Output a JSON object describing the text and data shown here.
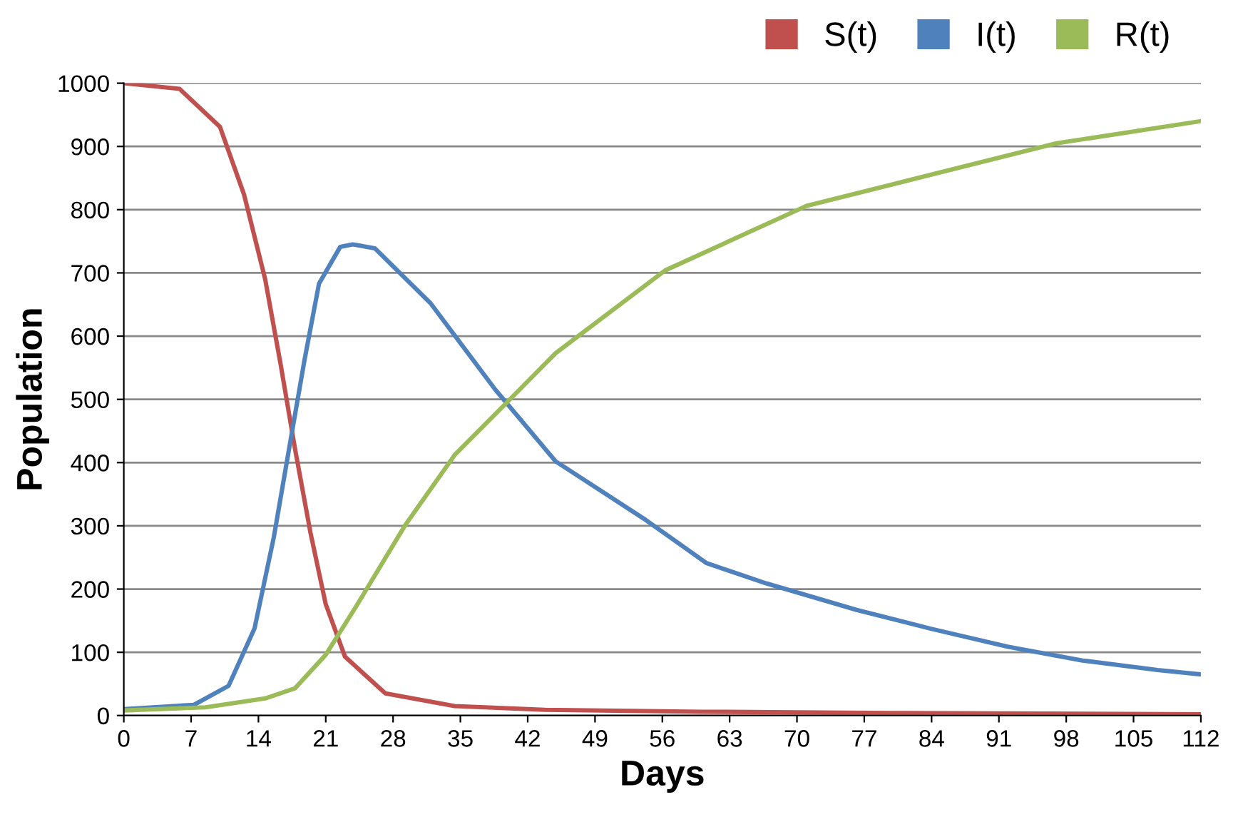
{
  "chart_data": {
    "type": "line",
    "xlabel": "Days",
    "ylabel": "Population",
    "xlim": [
      0,
      112
    ],
    "xticks": [
      0,
      7,
      14,
      21,
      28,
      35,
      42,
      49,
      56,
      63,
      70,
      77,
      84,
      91,
      98,
      105,
      112
    ],
    "ylim": [
      0,
      1000
    ],
    "yticks": [
      0,
      100,
      200,
      300,
      400,
      500,
      600,
      700,
      800,
      900,
      1000
    ],
    "grid": "y",
    "legend": "top right",
    "marker": "none",
    "line_style": "solid",
    "series": [
      {
        "name": "S(t)",
        "color": "#c0504d",
        "x": [
          0,
          5.8,
          10,
          12.5,
          14.7,
          16.3,
          17.8,
          19.4,
          21,
          23,
          27.2,
          34.4,
          43.8,
          60,
          80,
          112
        ],
        "values": [
          1000,
          991,
          931,
          824,
          690,
          556,
          422,
          290,
          176,
          93,
          35,
          15,
          9,
          6,
          4,
          2
        ]
      },
      {
        "name": "I(t)",
        "color": "#4f81bd",
        "x": [
          0,
          7.3,
          10.9,
          13.6,
          15.6,
          17.2,
          18.8,
          20.3,
          22.5,
          23.8,
          26.1,
          31.9,
          38.6,
          44.9,
          54.3,
          60.6,
          66.8,
          76.2,
          84,
          91.9,
          99.7,
          107.5,
          112
        ],
        "values": [
          10,
          17,
          47,
          138,
          282,
          423,
          563,
          683,
          741,
          745,
          739,
          652,
          516,
          402,
          309,
          241,
          209,
          167,
          137,
          109,
          87,
          72,
          65
        ]
      },
      {
        "name": "R(t)",
        "color": "#9bbb59",
        "x": [
          0,
          8.5,
          14.7,
          17.8,
          21,
          24.1,
          29.3,
          34.4,
          39.7,
          44.9,
          56.3,
          71,
          97,
          112
        ],
        "values": [
          8,
          13,
          27,
          43,
          96,
          171,
          302,
          412,
          493,
          573,
          704,
          806,
          905,
          940
        ]
      }
    ]
  }
}
